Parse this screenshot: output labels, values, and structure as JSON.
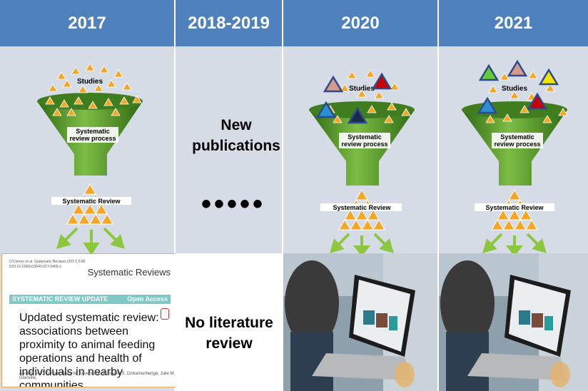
{
  "columns": [
    {
      "year": "2017"
    },
    {
      "year": "2018-2019"
    },
    {
      "year": "2020"
    },
    {
      "year": "2021"
    }
  ],
  "funnel": {
    "studies_label": "Studies",
    "process_label_line1": "Systematic",
    "process_label_line2": "review process",
    "output_label": "Systematic Review"
  },
  "middle": {
    "new_publications": "New publications",
    "dots": "•••••",
    "no_review": "No literature review"
  },
  "paper": {
    "journal": "Systematic Reviews",
    "meta_line1": "O'Connor et al. Systematic Reviews (2017) 6:86",
    "meta_line2": "DOI 10.1186/s13643-017-0465-z",
    "banner": "SYSTEMATIC REVIEW UPDATE",
    "access": "Open Access",
    "title": "Updated systematic review: associations between proximity to animal feeding operations and health of individuals in nearby communities",
    "authors": "Annette M. O'Connor, Brent W. Auvermann, Rungano S. Dzikamunhenga, Julie M. Glanville,"
  },
  "colors": {
    "header": "#4f81bd",
    "panel": "#d6dce5",
    "funnel": "#5c9e2e",
    "triangle": "#f5a623",
    "arrow": "#8dc63f"
  },
  "new_study_colors_2020": [
    "#d49a8a",
    "#cc0000",
    "#2b8fd6",
    "#1a2a4a"
  ],
  "new_study_colors_2021": [
    "#66cc33",
    "#d49a8a",
    "#f2e600",
    "#2b8fd6",
    "#cc0000"
  ]
}
